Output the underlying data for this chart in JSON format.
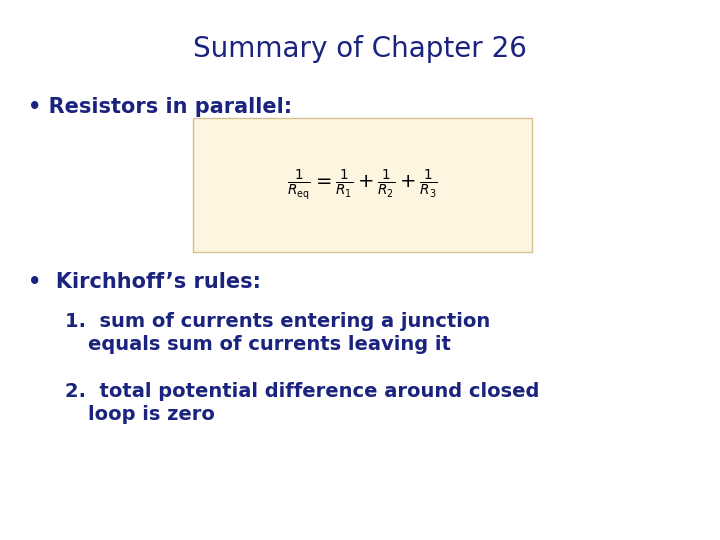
{
  "title": "Summary of Chapter 26",
  "title_color": "#1a237e",
  "title_fontsize": 20,
  "background_color": "#ffffff",
  "text_color": "#1a237e",
  "formula_box_color": "#fdf5e0",
  "formula_box_edge": "#d4c090",
  "bullet1_text": "• Resistors in parallel:",
  "bullet2_text": "•  Kirchhoff’s rules:",
  "bullet_fontsize": 15,
  "item_fontsize": 14,
  "formula_fontsize": 14
}
